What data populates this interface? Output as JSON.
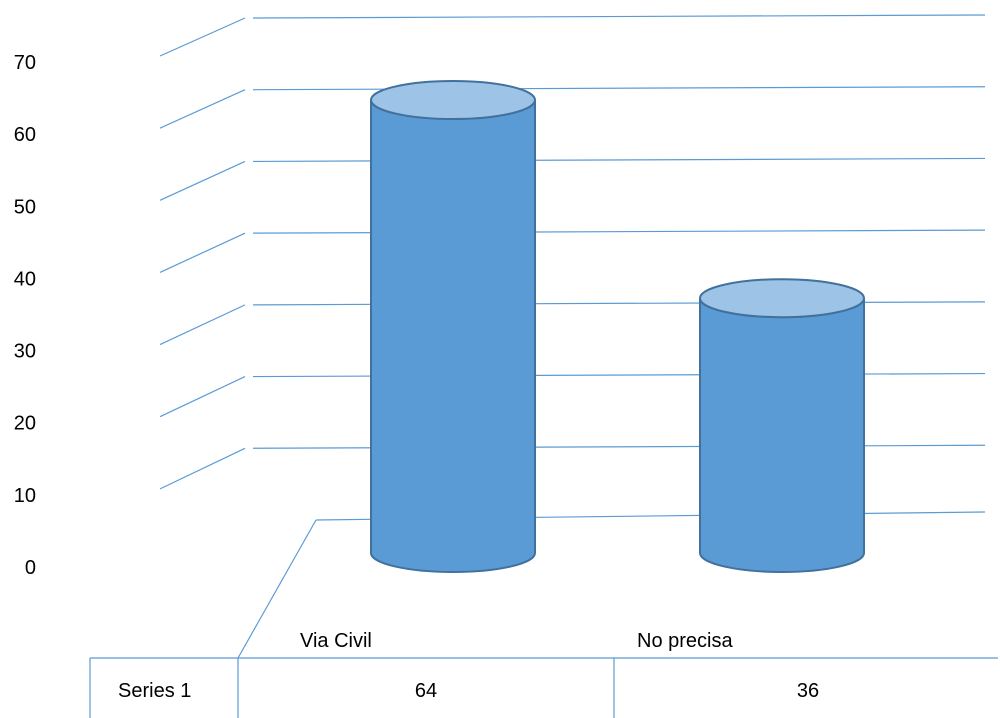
{
  "chart_data": {
    "type": "bar",
    "style": "3d-cylinder",
    "categories": [
      "Via Civil",
      "No precisa"
    ],
    "series": [
      {
        "name": "Series 1",
        "values": [
          64,
          36
        ]
      }
    ],
    "ylim": [
      0,
      70
    ],
    "yticks": [
      0,
      10,
      20,
      30,
      40,
      50,
      60,
      70
    ],
    "grid": true,
    "data_table": true,
    "colors": {
      "bar": "#5b9bd5",
      "bar_top": "#9dc3e6",
      "bar_edge": "#41719c",
      "grid": "#5b9bd5"
    }
  }
}
